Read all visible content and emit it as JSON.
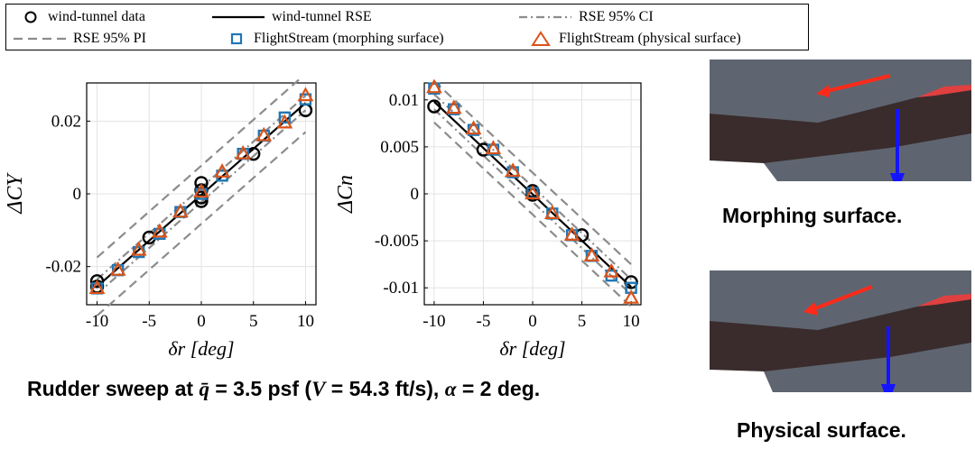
{
  "legend": {
    "items": [
      {
        "label": "wind-tunnel data",
        "icon": "open-circle-marker",
        "color": "#000000"
      },
      {
        "label": "wind-tunnel RSE",
        "icon": "solid-line",
        "color": "#000000"
      },
      {
        "label": "RSE 95% CI",
        "icon": "dash-dot-line",
        "color": "#8c8c8c"
      },
      {
        "label": "RSE 95% PI",
        "icon": "dashed-line",
        "color": "#8c8c8c"
      },
      {
        "label": "FlightStream (morphing surface)",
        "icon": "open-square-marker",
        "color": "#1f77b4"
      },
      {
        "label": "FlightStream (physical surface)",
        "icon": "open-triangle-marker",
        "color": "#d95319"
      }
    ]
  },
  "chart_data": [
    {
      "type": "line",
      "xlabel": "δr [deg]",
      "ylabel": "ΔCY",
      "xlim": [
        -11,
        11
      ],
      "ylim": [
        -0.0305,
        0.0305
      ],
      "xticks": [
        -10,
        -5,
        0,
        5,
        10
      ],
      "yticks": [
        -0.02,
        0,
        0.02
      ],
      "ytick_labels": [
        "-0.02",
        "0",
        "0.02"
      ],
      "grid": true,
      "series": [
        {
          "name": "wind-tunnel data",
          "marker": "circle",
          "color": "#000000",
          "x": [
            -10,
            -10,
            -5,
            0,
            0,
            0,
            0,
            5,
            10
          ],
          "y": [
            -0.024,
            -0.0255,
            -0.012,
            0.003,
            0.001,
            -0.001,
            -0.002,
            0.011,
            0.023
          ]
        },
        {
          "name": "wind-tunnel RSE",
          "color": "#000000",
          "x": [
            -10,
            10
          ],
          "y": [
            -0.0255,
            0.025
          ]
        },
        {
          "name": "RSE 95% CI",
          "color": "#8c8c8c",
          "x": [
            -10,
            10
          ],
          "y": [
            -0.0235,
            0.027
          ]
        },
        {
          "name": "RSE 95% CI",
          "color": "#8c8c8c",
          "x": [
            -10,
            10
          ],
          "y": [
            -0.0275,
            0.023
          ]
        },
        {
          "name": "RSE 95% PI",
          "color": "#8c8c8c",
          "x": [
            -10,
            10
          ],
          "y": [
            -0.0175,
            0.033
          ]
        },
        {
          "name": "RSE 95% PI",
          "color": "#8c8c8c",
          "x": [
            -10,
            10
          ],
          "y": [
            -0.0335,
            0.017
          ]
        },
        {
          "name": "FlightStream (morphing surface)",
          "marker": "square",
          "color": "#1f77b4",
          "x": [
            -10,
            -8,
            -6,
            -4,
            -2,
            0,
            2,
            4,
            6,
            8,
            10
          ],
          "y": [
            -0.026,
            -0.021,
            -0.016,
            -0.011,
            -0.005,
            0.0,
            0.005,
            0.011,
            0.016,
            0.021,
            0.026
          ]
        },
        {
          "name": "FlightStream (physical surface)",
          "marker": "triangle",
          "color": "#d95319",
          "x": [
            -10,
            -8,
            -6,
            -4,
            -2,
            0,
            2,
            4,
            6,
            8,
            10
          ],
          "y": [
            -0.026,
            -0.021,
            -0.0155,
            -0.0105,
            -0.005,
            0.0005,
            0.006,
            0.011,
            0.016,
            0.0195,
            0.027
          ]
        }
      ]
    },
    {
      "type": "line",
      "xlabel": "δr [deg]",
      "ylabel": "ΔCn",
      "xlim": [
        -11,
        11
      ],
      "ylim": [
        -0.0118,
        0.0118
      ],
      "xticks": [
        -10,
        -5,
        0,
        5,
        10
      ],
      "yticks": [
        0.01,
        0.005,
        0,
        -0.005,
        -0.01
      ],
      "ytick_labels": [
        "0.01",
        "0.005",
        "0",
        "-0.005",
        "-0.01"
      ],
      "grid": true,
      "series": [
        {
          "name": "wind-tunnel data",
          "marker": "circle",
          "color": "#000000",
          "x": [
            -10,
            -5,
            0,
            0,
            5,
            10
          ],
          "y": [
            0.0093,
            0.0047,
            0.0003,
            -0.0001,
            -0.0044,
            -0.0094
          ]
        },
        {
          "name": "wind-tunnel RSE",
          "color": "#000000",
          "x": [
            -10,
            10
          ],
          "y": [
            0.0098,
            -0.0099
          ]
        },
        {
          "name": "RSE 95% CI",
          "color": "#8c8c8c",
          "x": [
            -10,
            10
          ],
          "y": [
            0.0106,
            -0.0091
          ]
        },
        {
          "name": "RSE 95% CI",
          "color": "#8c8c8c",
          "x": [
            -10,
            10
          ],
          "y": [
            0.009,
            -0.0107
          ]
        },
        {
          "name": "RSE 95% PI",
          "color": "#8c8c8c",
          "x": [
            -10,
            10
          ],
          "y": [
            0.012,
            -0.0075
          ]
        },
        {
          "name": "RSE 95% PI",
          "color": "#8c8c8c",
          "x": [
            -10,
            10
          ],
          "y": [
            0.0076,
            -0.012
          ]
        },
        {
          "name": "FlightStream (morphing surface)",
          "marker": "square",
          "color": "#1f77b4",
          "x": [
            -10,
            -8,
            -6,
            -4,
            -2,
            0,
            2,
            4,
            6,
            8,
            10
          ],
          "y": [
            0.0112,
            0.009,
            0.0068,
            0.0047,
            0.0023,
            0.0001,
            -0.0021,
            -0.0044,
            -0.0066,
            -0.0087,
            -0.01
          ]
        },
        {
          "name": "FlightStream (physical surface)",
          "marker": "triangle",
          "color": "#d95319",
          "x": [
            -10,
            -8,
            -6,
            -4,
            -2,
            0,
            2,
            4,
            6,
            8,
            10
          ],
          "y": [
            0.0113,
            0.0091,
            0.0069,
            0.0048,
            0.0024,
            0.0,
            -0.0021,
            -0.0044,
            -0.0066,
            -0.0083,
            -0.0111
          ]
        }
      ]
    }
  ],
  "captions": {
    "main_prefix": "Rudder sweep at ",
    "main_qbar": "q̄",
    "main_mid1": " = 3.5 psf (",
    "main_V": "V",
    "main_mid2": " = 54.3 ft/s), ",
    "main_alpha": "α",
    "main_suffix": " = 2 deg.",
    "morphing": "Morphing surface.",
    "physical": "Physical surface."
  },
  "colors": {
    "vector_red": "#ff2a1a",
    "vector_blue": "#1414ff",
    "mesh_gray": "#5e6570",
    "surface_dark": "#3a2c2c"
  }
}
